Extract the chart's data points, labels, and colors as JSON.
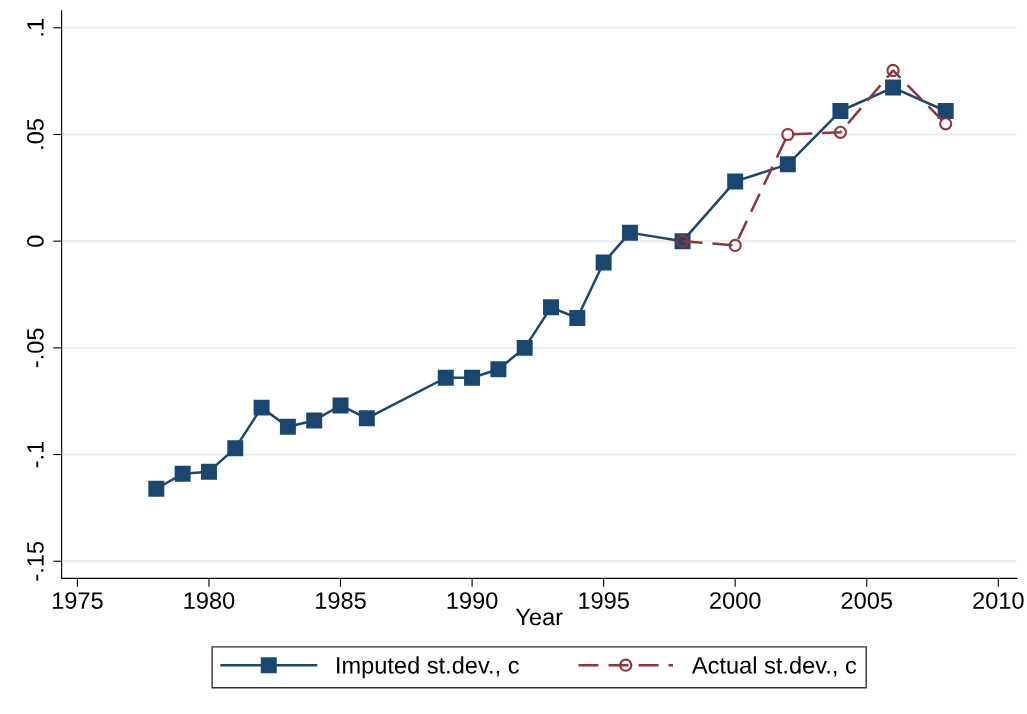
{
  "chart_data": {
    "type": "line",
    "xlabel": "Year",
    "xlim": [
      1974.4,
      2010.7
    ],
    "xticks": [
      1975,
      1980,
      1985,
      1990,
      1995,
      2000,
      2005,
      2010
    ],
    "ylim": [
      -0.158,
      0.108
    ],
    "yticks": [
      {
        "value": -0.15,
        "label": "-.15"
      },
      {
        "value": -0.1,
        "label": "-.1"
      },
      {
        "value": -0.05,
        "label": "-.05"
      },
      {
        "value": 0,
        "label": "0"
      },
      {
        "value": 0.05,
        "label": ".05"
      },
      {
        "value": 0.1,
        "label": ".1"
      }
    ],
    "grid": "y",
    "legend": "bottom",
    "series": [
      {
        "name": "Imputed st.dev., c",
        "color": "#1a476f",
        "marker": "square",
        "line_style": "solid",
        "x": [
          1978,
          1979,
          1980,
          1981,
          1982,
          1983,
          1984,
          1985,
          1986,
          1989,
          1990,
          1991,
          1992,
          1993,
          1994,
          1995,
          1996,
          1998,
          2000,
          2002,
          2004,
          2006,
          2008
        ],
        "values": [
          -0.116,
          -0.109,
          -0.108,
          -0.097,
          -0.078,
          -0.087,
          -0.084,
          -0.077,
          -0.083,
          -0.064,
          -0.064,
          -0.06,
          -0.05,
          -0.031,
          -0.036,
          -0.01,
          0.004,
          0,
          0.028,
          0.036,
          0.061,
          0.072,
          0.061
        ]
      },
      {
        "name": "Actual st.dev., c",
        "color": "#90353b",
        "marker": "circle",
        "line_style": "dashed",
        "x": [
          1998,
          2000,
          2002,
          2004,
          2006,
          2008
        ],
        "values": [
          0,
          -0.002,
          0.05,
          0.051,
          0.08,
          0.055
        ]
      }
    ]
  }
}
